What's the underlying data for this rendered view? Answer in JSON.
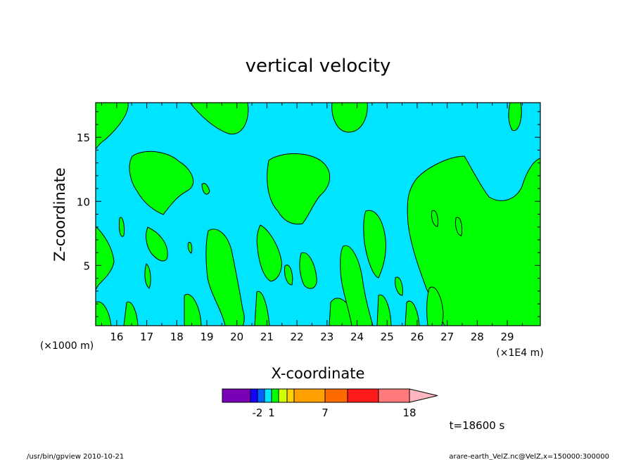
{
  "chart_data": {
    "type": "contour",
    "title": "vertical velocity",
    "xlabel": "X-coordinate",
    "ylabel": "Z-coordinate",
    "x_offset_label": "(×1000 m)",
    "x_scale_label": "(×1E4 m)",
    "x_ticks": [
      "16",
      "17",
      "18",
      "19",
      "20",
      "21",
      "22",
      "23",
      "24",
      "25",
      "26",
      "27",
      "28",
      "29"
    ],
    "y_ticks": [
      "5",
      "10",
      "15"
    ],
    "xlim": [
      15.3,
      30.1
    ],
    "ylim": [
      0.3,
      17.7
    ],
    "colorbar": {
      "colors": [
        "#7a00b8",
        "#1400ff",
        "#0060ff",
        "#00e5ff",
        "#00ff00",
        "#d0ff00",
        "#ffd000",
        "#ffa000",
        "#ff6a00",
        "#ff1a1a",
        "#ff7a7a",
        "#ffb6c1"
      ],
      "labels": [
        "-2",
        "1",
        "7",
        "18"
      ]
    },
    "background_level_color": "#00e5ff",
    "positive_level_color": "#00ff00",
    "time_label": "t=18600 s"
  },
  "footer": {
    "left": "/usr/bin/gpview  2010-10-21",
    "right": "arare-earth_VelZ.nc@VelZ,x=150000:300000"
  }
}
